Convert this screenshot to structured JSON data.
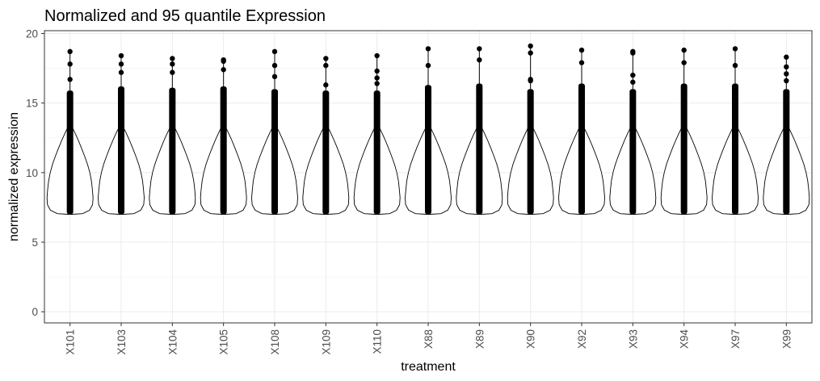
{
  "chart_data": {
    "type": "violin",
    "title": "Normalized and 95 quantile Expression",
    "xlabel": "treatment",
    "ylabel": "normalized expression",
    "ylim": [
      -0.8,
      20.2
    ],
    "yticks": [
      0,
      5,
      10,
      15,
      20
    ],
    "grid": true,
    "legend": "none",
    "categories": [
      "X101",
      "X103",
      "X104",
      "X105",
      "X108",
      "X109",
      "X110",
      "X88",
      "X89",
      "X90",
      "X92",
      "X93",
      "X94",
      "X97",
      "X99"
    ],
    "series": [
      {
        "category": "X101",
        "min": 7.0,
        "upper_whisker": 15.9,
        "outliers": [
          16.7,
          17.8,
          18.7
        ]
      },
      {
        "category": "X103",
        "min": 7.0,
        "upper_whisker": 16.2,
        "outliers": [
          17.2,
          17.8,
          18.4
        ]
      },
      {
        "category": "X104",
        "min": 7.0,
        "upper_whisker": 16.1,
        "outliers": [
          17.2,
          17.8,
          18.2
        ]
      },
      {
        "category": "X105",
        "min": 7.0,
        "upper_whisker": 16.2,
        "outliers": [
          17.4,
          18.0,
          18.1
        ]
      },
      {
        "category": "X108",
        "min": 7.0,
        "upper_whisker": 16.0,
        "outliers": [
          16.9,
          17.7,
          18.7
        ]
      },
      {
        "category": "X109",
        "min": 7.0,
        "upper_whisker": 15.9,
        "outliers": [
          16.3,
          17.7,
          18.2
        ]
      },
      {
        "category": "X110",
        "min": 7.0,
        "upper_whisker": 15.9,
        "outliers": [
          16.4,
          16.8,
          17.3,
          18.4
        ]
      },
      {
        "category": "X88",
        "min": 7.0,
        "upper_whisker": 16.3,
        "outliers": [
          17.7,
          18.9
        ]
      },
      {
        "category": "X89",
        "min": 7.0,
        "upper_whisker": 16.4,
        "outliers": [
          18.1,
          18.9
        ]
      },
      {
        "category": "X90",
        "min": 7.0,
        "upper_whisker": 16.0,
        "outliers": [
          16.6,
          16.7,
          18.6,
          19.1
        ]
      },
      {
        "category": "X92",
        "min": 7.0,
        "upper_whisker": 16.4,
        "outliers": [
          17.9,
          18.8
        ]
      },
      {
        "category": "X93",
        "min": 7.0,
        "upper_whisker": 16.0,
        "outliers": [
          16.5,
          17.0,
          18.6,
          18.7
        ]
      },
      {
        "category": "X94",
        "min": 7.0,
        "upper_whisker": 16.4,
        "outliers": [
          17.9,
          18.8
        ]
      },
      {
        "category": "X97",
        "min": 7.0,
        "upper_whisker": 16.4,
        "outliers": [
          17.7,
          18.9
        ]
      },
      {
        "category": "X99",
        "min": 7.0,
        "upper_whisker": 16.0,
        "outliers": [
          16.6,
          17.1,
          17.6,
          18.3
        ]
      }
    ]
  }
}
